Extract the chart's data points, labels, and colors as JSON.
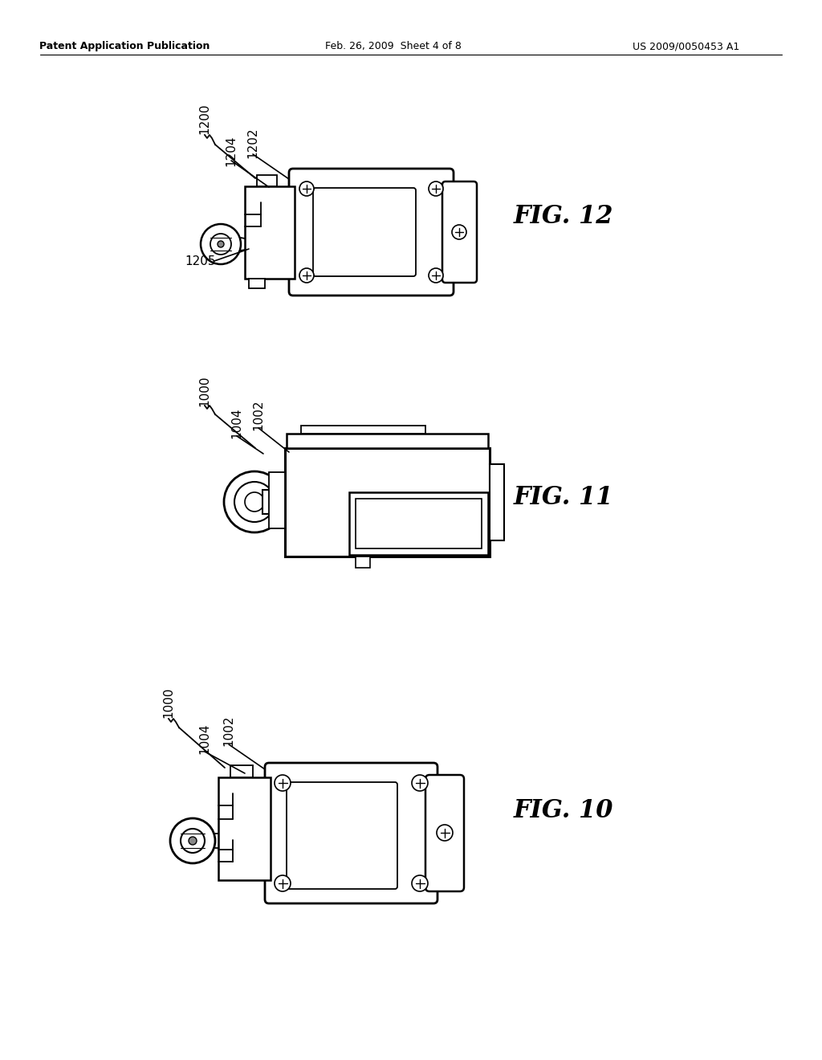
{
  "bg_color": "#ffffff",
  "text_color": "#000000",
  "line_color": "#000000",
  "header_left": "Patent Application Publication",
  "header_center": "Feb. 26, 2009  Sheet 4 of 8",
  "header_right": "US 2009/0050453 A1",
  "fig12_label": "FIG. 12",
  "fig11_label": "FIG. 11",
  "fig10_label": "FIG. 10"
}
